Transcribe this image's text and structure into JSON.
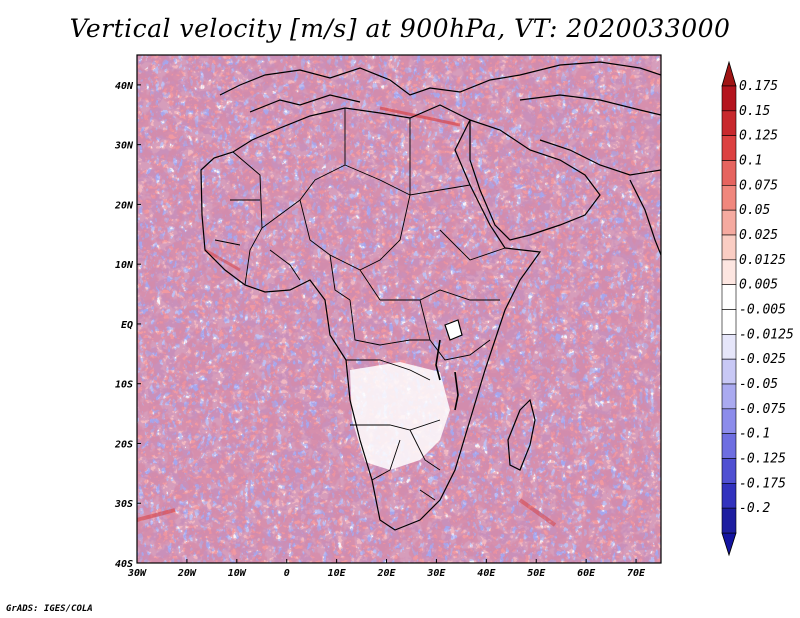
{
  "title": "Vertical velocity [m/s] at 900hPa, VT: 2020033000",
  "credit": "GrADS: IGES/COLA",
  "map": {
    "lon_range": [
      -30,
      75
    ],
    "lat_range": [
      -40,
      45
    ],
    "lon_ticks": [
      {
        "value": -30,
        "label": "30W"
      },
      {
        "value": -20,
        "label": "20W"
      },
      {
        "value": -10,
        "label": "10W"
      },
      {
        "value": 0,
        "label": "0"
      },
      {
        "value": 10,
        "label": "10E"
      },
      {
        "value": 20,
        "label": "20E"
      },
      {
        "value": 30,
        "label": "30E"
      },
      {
        "value": 40,
        "label": "40E"
      },
      {
        "value": 50,
        "label": "50E"
      },
      {
        "value": 60,
        "label": "60E"
      },
      {
        "value": 70,
        "label": "70E"
      }
    ],
    "lat_ticks": [
      {
        "value": 40,
        "label": "40N"
      },
      {
        "value": 30,
        "label": "30N"
      },
      {
        "value": 20,
        "label": "20N"
      },
      {
        "value": 10,
        "label": "10N"
      },
      {
        "value": 0,
        "label": "EQ"
      },
      {
        "value": -10,
        "label": "10S"
      },
      {
        "value": -20,
        "label": "20S"
      },
      {
        "value": -30,
        "label": "30S"
      },
      {
        "value": -40,
        "label": "40S"
      }
    ]
  },
  "colorbar": {
    "levels": [
      {
        "label": "0.175",
        "color": "#b4141e"
      },
      {
        "label": "0.15",
        "color": "#c8282d"
      },
      {
        "label": "0.125",
        "color": "#dc4141"
      },
      {
        "label": "0.1",
        "color": "#e6645f"
      },
      {
        "label": "0.075",
        "color": "#f0877d"
      },
      {
        "label": "0.05",
        "color": "#f5aaa0"
      },
      {
        "label": "0.025",
        "color": "#facdc3"
      },
      {
        "label": "0.0125",
        "color": "#fde6e1"
      },
      {
        "label": "0.005",
        "color": "#ffffff"
      },
      {
        "label": "-0.005",
        "color": "#ffffff"
      },
      {
        "label": "-0.0125",
        "color": "#e6e6fa"
      },
      {
        "label": "-0.025",
        "color": "#c8c8f5"
      },
      {
        "label": "-0.05",
        "color": "#aaaaf0"
      },
      {
        "label": "-0.075",
        "color": "#8c8ceb"
      },
      {
        "label": "-0.1",
        "color": "#6e6ee1"
      },
      {
        "label": "-0.125",
        "color": "#5050d2"
      },
      {
        "label": "-0.175",
        "color": "#3232be"
      },
      {
        "label": "-0.2",
        "color": "#1e1ea0"
      }
    ],
    "top_color": "#a01414",
    "bottom_color": "#1414a0"
  }
}
